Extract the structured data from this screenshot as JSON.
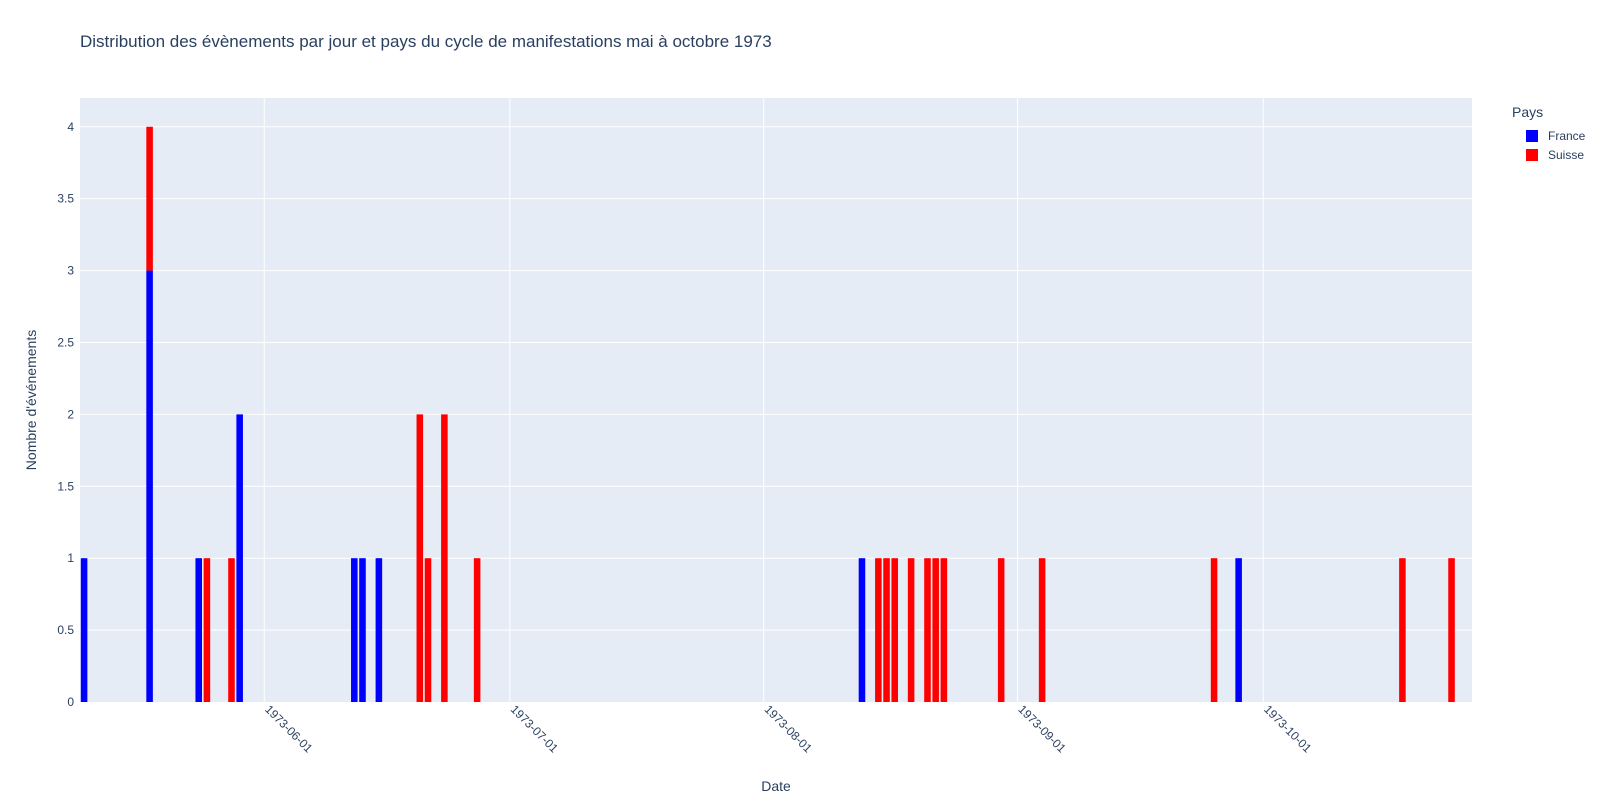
{
  "chart_data": {
    "type": "bar",
    "barmode": "stack",
    "title": "Distribution des évènements par jour et pays du cycle de manifestations mai à octobre 1973",
    "xlabel": "Date",
    "ylabel": "Nombre d'événements",
    "xlim": [
      "1973-05-10",
      "1973-10-26"
    ],
    "ylim": [
      0,
      4.2
    ],
    "yticks": [
      0,
      0.5,
      1,
      1.5,
      2,
      2.5,
      3,
      3.5,
      4
    ],
    "xticks": [
      "1973-06-01",
      "1973-07-01",
      "1973-08-01",
      "1973-09-01",
      "1973-10-01"
    ],
    "grid": true,
    "legend_title": "Pays",
    "legend_position": "top-right",
    "series": [
      {
        "name": "France",
        "color": "#0000ff",
        "points": [
          {
            "x": "1973-05-10",
            "y": 1
          },
          {
            "x": "1973-05-18",
            "y": 3
          },
          {
            "x": "1973-05-24",
            "y": 1
          },
          {
            "x": "1973-05-29",
            "y": 2
          },
          {
            "x": "1973-06-12",
            "y": 1
          },
          {
            "x": "1973-06-13",
            "y": 1
          },
          {
            "x": "1973-06-15",
            "y": 1
          },
          {
            "x": "1973-08-13",
            "y": 1
          },
          {
            "x": "1973-09-28",
            "y": 1
          }
        ]
      },
      {
        "name": "Suisse",
        "color": "#ff0000",
        "points": [
          {
            "x": "1973-05-18",
            "y": 1
          },
          {
            "x": "1973-05-25",
            "y": 1
          },
          {
            "x": "1973-05-28",
            "y": 1
          },
          {
            "x": "1973-06-20",
            "y": 2
          },
          {
            "x": "1973-06-21",
            "y": 1
          },
          {
            "x": "1973-06-23",
            "y": 2
          },
          {
            "x": "1973-06-27",
            "y": 1
          },
          {
            "x": "1973-08-15",
            "y": 1
          },
          {
            "x": "1973-08-16",
            "y": 1
          },
          {
            "x": "1973-08-17",
            "y": 1
          },
          {
            "x": "1973-08-19",
            "y": 1
          },
          {
            "x": "1973-08-21",
            "y": 1
          },
          {
            "x": "1973-08-22",
            "y": 1
          },
          {
            "x": "1973-08-23",
            "y": 1
          },
          {
            "x": "1973-08-30",
            "y": 1
          },
          {
            "x": "1973-09-04",
            "y": 1
          },
          {
            "x": "1973-09-25",
            "y": 1
          },
          {
            "x": "1973-10-18",
            "y": 1
          },
          {
            "x": "1973-10-24",
            "y": 1
          }
        ]
      }
    ]
  }
}
